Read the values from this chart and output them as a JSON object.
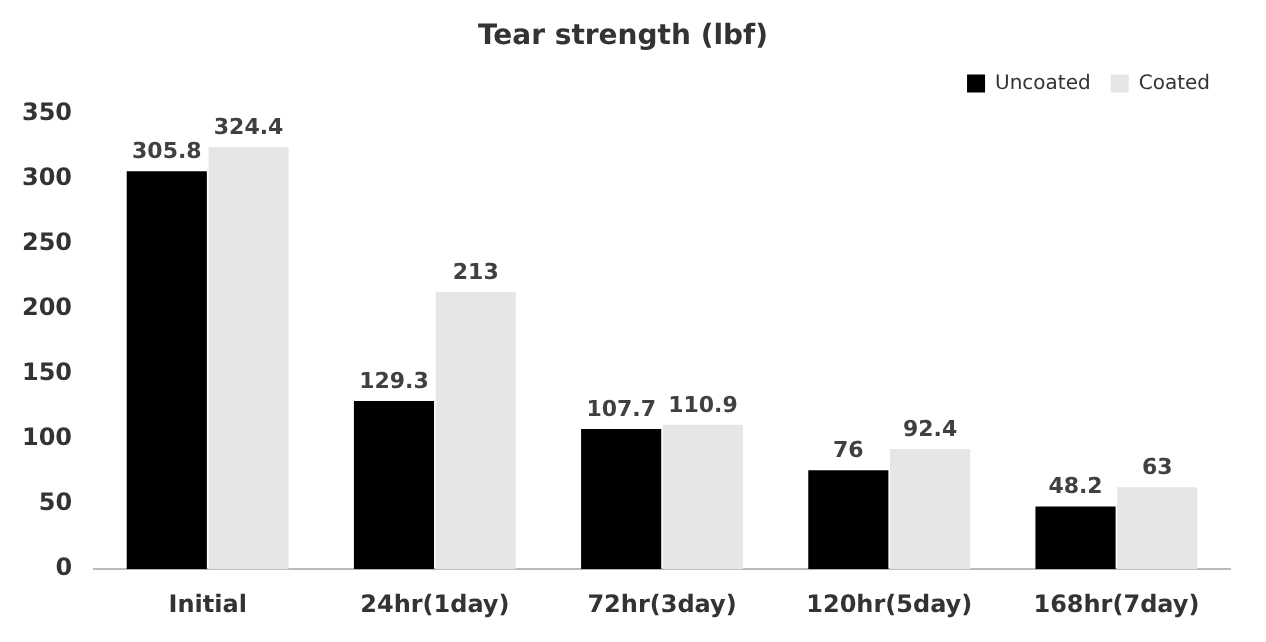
{
  "chart_data": {
    "type": "bar",
    "title": "Tear strength (lbf)",
    "categories": [
      "Initial",
      "24hr(1day)",
      "72hr(3day)",
      "120hr(5day)",
      "168hr(7day)"
    ],
    "series": [
      {
        "name": "Uncoated",
        "color": "#000000",
        "values": [
          305.8,
          129.3,
          107.7,
          76,
          48.2
        ]
      },
      {
        "name": "Coated",
        "color": "#e6e6e6",
        "values": [
          324.4,
          213,
          110.9,
          92.4,
          63
        ]
      }
    ],
    "ylim": [
      0,
      350
    ],
    "yticks": [
      0,
      50,
      100,
      150,
      200,
      250,
      300,
      350
    ],
    "grid": false,
    "legend": "top right",
    "data_labels": true
  }
}
